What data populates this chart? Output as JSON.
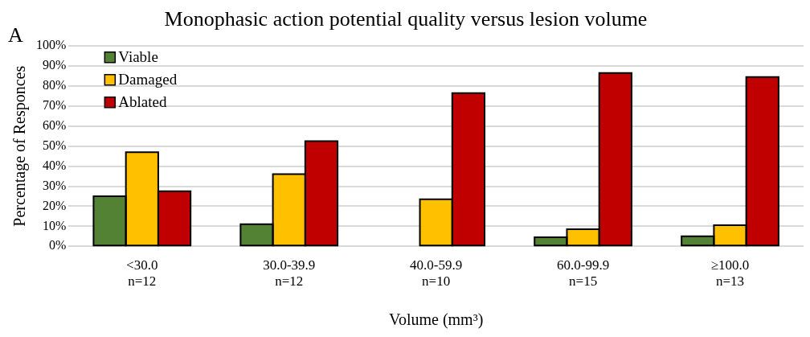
{
  "chart_data": {
    "type": "bar",
    "title": "Monophasic action potential quality versus lesion volume",
    "categories": [
      "<30.0\nn=12",
      "30.0-39.9\nn=12",
      "40.0-59.9\nn=10",
      "60.0-99.9\nn=15",
      "≥100.0\nn=13"
    ],
    "series": [
      {
        "name": "Viable",
        "color": "#548235",
        "values": [
          25,
          11,
          0,
          4.5,
          5
        ]
      },
      {
        "name": "Damaged",
        "color": "#ffc000",
        "values": [
          47,
          36,
          23.5,
          8.5,
          10.5
        ]
      },
      {
        "name": "Ablated",
        "color": "#c00000",
        "values": [
          27.5,
          52.5,
          76.5,
          86.5,
          84.5
        ]
      }
    ],
    "xlabel": "Volume (mm³)",
    "ylabel": "Percentage of Responces",
    "ylim": [
      0,
      100
    ],
    "yticks": [
      {
        "value": 0,
        "label": "0%"
      },
      {
        "value": 10,
        "label": "10%"
      },
      {
        "value": 20,
        "label": "20%"
      },
      {
        "value": 30,
        "label": "30%"
      },
      {
        "value": 40,
        "label": "40%"
      },
      {
        "value": 50,
        "label": "50%"
      },
      {
        "value": 60,
        "label": "60%"
      },
      {
        "value": 70,
        "label": "70%"
      },
      {
        "value": 80,
        "label": "80%"
      },
      {
        "value": 90,
        "label": "90%"
      },
      {
        "value": 100,
        "label": "100%"
      }
    ],
    "grid": "y",
    "legend": "top left",
    "annotations": [
      "A"
    ]
  }
}
